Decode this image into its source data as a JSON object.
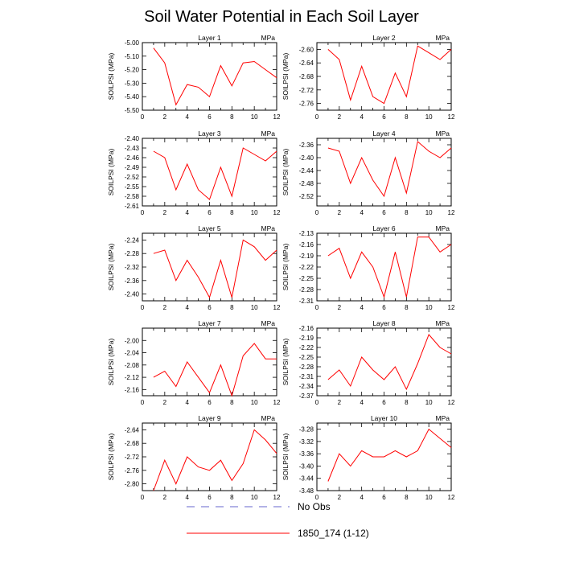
{
  "title": "Soil Water Potential in Each Soil Layer",
  "colors": {
    "model": "#ff0000",
    "obs": "#6666cc"
  },
  "legend": [
    {
      "label": "No Obs",
      "style": "dashed",
      "color": "#6666cc"
    },
    {
      "label": "1850_174 (1-12)",
      "style": "solid",
      "color": "#ff0000"
    }
  ],
  "chart_data": [
    {
      "type": "line",
      "title": "Layer 1",
      "unit": "MPa",
      "ylabel": "SOILPSI  (MPa)",
      "x": [
        1,
        2,
        3,
        4,
        5,
        6,
        7,
        8,
        9,
        10,
        11,
        12
      ],
      "series": [
        {
          "values": [
            -5.04,
            -5.15,
            -5.46,
            -5.31,
            -5.33,
            -5.4,
            -5.17,
            -5.32,
            -5.15,
            -5.14,
            -5.2,
            -5.26
          ]
        }
      ],
      "xlim": [
        0,
        12
      ],
      "ylim": [
        -5.5,
        -5.0
      ],
      "xticks": [
        "0",
        "2",
        "4",
        "6",
        "8",
        "10",
        "12"
      ],
      "yticks": [
        "-5.00",
        "-5.10",
        "-5.20",
        "-5.30",
        "-5.40",
        "-5.50"
      ]
    },
    {
      "type": "line",
      "title": "Layer 2",
      "unit": "MPa",
      "ylabel": "SOILPSI  (MPa)",
      "x": [
        1,
        2,
        3,
        4,
        5,
        6,
        7,
        8,
        9,
        10,
        11,
        12
      ],
      "series": [
        {
          "values": [
            -2.6,
            -2.63,
            -2.75,
            -2.65,
            -2.74,
            -2.76,
            -2.67,
            -2.74,
            -2.59,
            -2.61,
            -2.63,
            -2.6
          ]
        }
      ],
      "xlim": [
        0,
        12
      ],
      "ylim": [
        -2.78,
        -2.58
      ],
      "xticks": [
        "0",
        "2",
        "4",
        "6",
        "8",
        "10",
        "12"
      ],
      "yticks": [
        "-2.60",
        "-2.64",
        "-2.68",
        "-2.72",
        "-2.76"
      ]
    },
    {
      "type": "line",
      "title": "Layer 3",
      "unit": "MPa",
      "ylabel": "SOILPSI  (MPa)",
      "x": [
        1,
        2,
        3,
        4,
        5,
        6,
        7,
        8,
        9,
        10,
        11,
        12
      ],
      "series": [
        {
          "values": [
            -2.44,
            -2.46,
            -2.56,
            -2.48,
            -2.56,
            -2.59,
            -2.49,
            -2.58,
            -2.43,
            -2.45,
            -2.47,
            -2.44
          ]
        }
      ],
      "xlim": [
        0,
        12
      ],
      "ylim": [
        -2.61,
        -2.4
      ],
      "xticks": [
        "0",
        "2",
        "4",
        "6",
        "8",
        "10",
        "12"
      ],
      "yticks": [
        "-2.40",
        "-2.43",
        "-2.46",
        "-2.49",
        "-2.52",
        "-2.55",
        "-2.58",
        "-2.61"
      ]
    },
    {
      "type": "line",
      "title": "Layer 4",
      "unit": "MPa",
      "ylabel": "SOILPSI  (MPa)",
      "x": [
        1,
        2,
        3,
        4,
        5,
        6,
        7,
        8,
        9,
        10,
        11,
        12
      ],
      "series": [
        {
          "values": [
            -2.37,
            -2.38,
            -2.48,
            -2.4,
            -2.47,
            -2.52,
            -2.4,
            -2.51,
            -2.35,
            -2.38,
            -2.4,
            -2.37
          ]
        }
      ],
      "xlim": [
        0,
        12
      ],
      "ylim": [
        -2.55,
        -2.34
      ],
      "xticks": [
        "0",
        "2",
        "4",
        "6",
        "8",
        "10",
        "12"
      ],
      "yticks": [
        "-2.36",
        "-2.40",
        "-2.44",
        "-2.48",
        "-2.52"
      ]
    },
    {
      "type": "line",
      "title": "Layer 5",
      "unit": "MPa",
      "ylabel": "SOILPSI  (MPa)",
      "x": [
        1,
        2,
        3,
        4,
        5,
        6,
        7,
        8,
        9,
        10,
        11,
        12
      ],
      "series": [
        {
          "values": [
            -2.28,
            -2.27,
            -2.36,
            -2.3,
            -2.35,
            -2.41,
            -2.3,
            -2.41,
            -2.24,
            -2.26,
            -2.3,
            -2.27
          ]
        }
      ],
      "xlim": [
        0,
        12
      ],
      "ylim": [
        -2.42,
        -2.22
      ],
      "xticks": [
        "0",
        "2",
        "4",
        "6",
        "8",
        "10",
        "12"
      ],
      "yticks": [
        "-2.24",
        "-2.28",
        "-2.32",
        "-2.36",
        "-2.40"
      ]
    },
    {
      "type": "line",
      "title": "Layer 6",
      "unit": "MPa",
      "ylabel": "SOILPSI  (MPa)",
      "x": [
        1,
        2,
        3,
        4,
        5,
        6,
        7,
        8,
        9,
        10,
        11,
        12
      ],
      "series": [
        {
          "values": [
            -2.19,
            -2.17,
            -2.25,
            -2.18,
            -2.22,
            -2.3,
            -2.18,
            -2.3,
            -2.14,
            -2.14,
            -2.18,
            -2.16
          ]
        }
      ],
      "xlim": [
        0,
        12
      ],
      "ylim": [
        -2.31,
        -2.13
      ],
      "xticks": [
        "0",
        "2",
        "4",
        "6",
        "8",
        "10",
        "12"
      ],
      "yticks": [
        "-2.13",
        "-2.16",
        "-2.19",
        "-2.22",
        "-2.25",
        "-2.28",
        "-2.31"
      ]
    },
    {
      "type": "line",
      "title": "Layer 7",
      "unit": "MPa",
      "ylabel": "SOILPSI  (MPa)",
      "x": [
        1,
        2,
        3,
        4,
        5,
        6,
        7,
        8,
        9,
        10,
        11,
        12
      ],
      "series": [
        {
          "values": [
            -2.12,
            -2.1,
            -2.15,
            -2.07,
            -2.12,
            -2.17,
            -2.08,
            -2.18,
            -2.05,
            -2.01,
            -2.06,
            -2.06
          ]
        }
      ],
      "xlim": [
        0,
        12
      ],
      "ylim": [
        -2.18,
        -1.96
      ],
      "xticks": [
        "0",
        "2",
        "4",
        "6",
        "8",
        "10",
        "12"
      ],
      "yticks": [
        "-2.00",
        "-2.04",
        "-2.08",
        "-2.12",
        "-2.16"
      ]
    },
    {
      "type": "line",
      "title": "Layer 8",
      "unit": "MPa",
      "ylabel": "SOILPSI  (MPa)",
      "x": [
        1,
        2,
        3,
        4,
        5,
        6,
        7,
        8,
        9,
        10,
        11,
        12
      ],
      "series": [
        {
          "values": [
            -2.32,
            -2.29,
            -2.34,
            -2.25,
            -2.29,
            -2.32,
            -2.28,
            -2.35,
            -2.27,
            -2.18,
            -2.22,
            -2.24
          ]
        }
      ],
      "xlim": [
        0,
        12
      ],
      "ylim": [
        -2.37,
        -2.16
      ],
      "xticks": [
        "0",
        "2",
        "4",
        "6",
        "8",
        "10",
        "12"
      ],
      "yticks": [
        "-2.16",
        "-2.19",
        "-2.22",
        "-2.25",
        "-2.28",
        "-2.31",
        "-2.34",
        "-2.37"
      ]
    },
    {
      "type": "line",
      "title": "Layer 9",
      "unit": "MPa",
      "ylabel": "SOILPSI  (MPa)",
      "x": [
        1,
        2,
        3,
        4,
        5,
        6,
        7,
        8,
        9,
        10,
        11,
        12
      ],
      "series": [
        {
          "values": [
            -2.82,
            -2.73,
            -2.8,
            -2.72,
            -2.75,
            -2.76,
            -2.73,
            -2.79,
            -2.74,
            -2.64,
            -2.67,
            -2.71
          ]
        }
      ],
      "xlim": [
        0,
        12
      ],
      "ylim": [
        -2.82,
        -2.62
      ],
      "xticks": [
        "0",
        "2",
        "4",
        "6",
        "8",
        "10",
        "12"
      ],
      "yticks": [
        "-2.64",
        "-2.68",
        "-2.72",
        "-2.76",
        "-2.80"
      ]
    },
    {
      "type": "line",
      "title": "Layer 10",
      "unit": "MPa",
      "ylabel": "SOILPSI  (MPa)",
      "x": [
        1,
        2,
        3,
        4,
        5,
        6,
        7,
        8,
        9,
        10,
        11,
        12
      ],
      "series": [
        {
          "values": [
            -3.45,
            -3.36,
            -3.4,
            -3.35,
            -3.37,
            -3.37,
            -3.35,
            -3.37,
            -3.35,
            -3.28,
            -3.31,
            -3.34
          ]
        }
      ],
      "xlim": [
        0,
        12
      ],
      "ylim": [
        -3.48,
        -3.26
      ],
      "xticks": [
        "0",
        "2",
        "4",
        "6",
        "8",
        "10",
        "12"
      ],
      "yticks": [
        "-3.28",
        "-3.32",
        "-3.36",
        "-3.40",
        "-3.44",
        "-3.48"
      ]
    }
  ]
}
